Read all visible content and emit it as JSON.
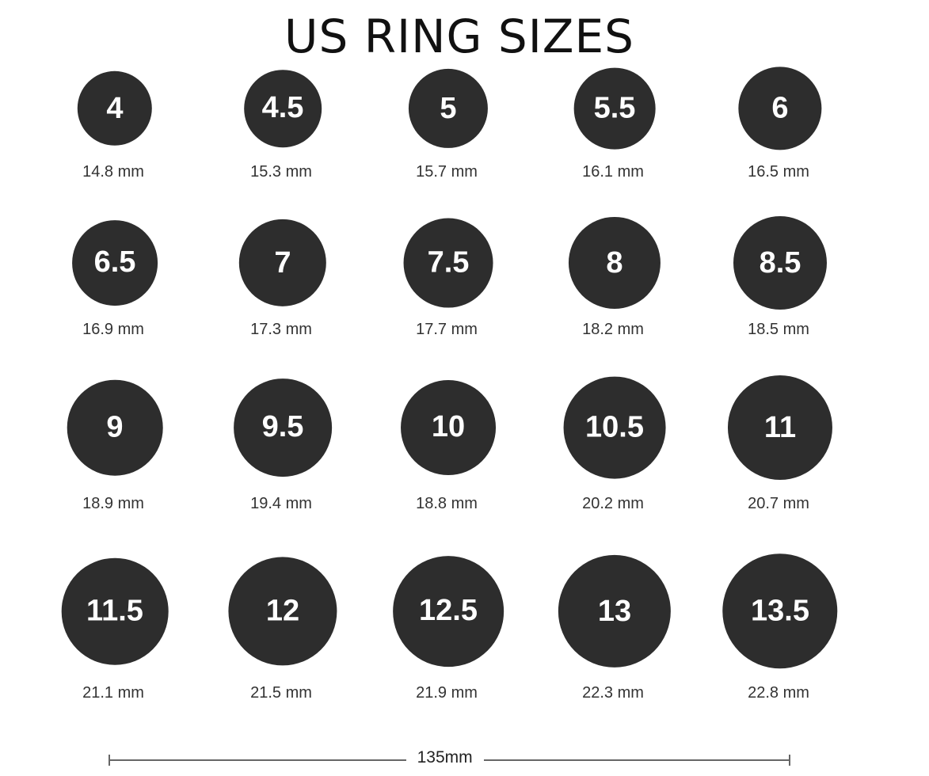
{
  "title": "US RING SIZES",
  "ring_color": "#2d2d2d",
  "rings": [
    {
      "size": "4",
      "diameter": "14.8 mm",
      "mm": 14.8
    },
    {
      "size": "4.5",
      "diameter": "15.3 mm",
      "mm": 15.3
    },
    {
      "size": "5",
      "diameter": "15.7 mm",
      "mm": 15.7
    },
    {
      "size": "5.5",
      "diameter": "16.1 mm",
      "mm": 16.1
    },
    {
      "size": "6",
      "diameter": "16.5 mm",
      "mm": 16.5
    },
    {
      "size": "6.5",
      "diameter": "16.9 mm",
      "mm": 16.9
    },
    {
      "size": "7",
      "diameter": "17.3 mm",
      "mm": 17.3
    },
    {
      "size": "7.5",
      "diameter": "17.7 mm",
      "mm": 17.7
    },
    {
      "size": "8",
      "diameter": "18.2 mm",
      "mm": 18.2
    },
    {
      "size": "8.5",
      "diameter": "18.5 mm",
      "mm": 18.5
    },
    {
      "size": "9",
      "diameter": "18.9 mm",
      "mm": 18.9
    },
    {
      "size": "9.5",
      "diameter": "19.4 mm",
      "mm": 19.4
    },
    {
      "size": "10",
      "diameter": "18.8 mm",
      "mm": 18.8
    },
    {
      "size": "10.5",
      "diameter": "20.2 mm",
      "mm": 20.2
    },
    {
      "size": "11",
      "diameter": "20.7 mm",
      "mm": 20.7
    },
    {
      "size": "11.5",
      "diameter": "21.1 mm",
      "mm": 21.1
    },
    {
      "size": "12",
      "diameter": "21.5 mm",
      "mm": 21.5
    },
    {
      "size": "12.5",
      "diameter": "21.9 mm",
      "mm": 21.9
    },
    {
      "size": "13",
      "diameter": "22.3 mm",
      "mm": 22.3
    },
    {
      "size": "13.5",
      "diameter": "22.8 mm",
      "mm": 22.8
    }
  ],
  "scale_bar": {
    "label": "135mm",
    "mm": 135
  }
}
